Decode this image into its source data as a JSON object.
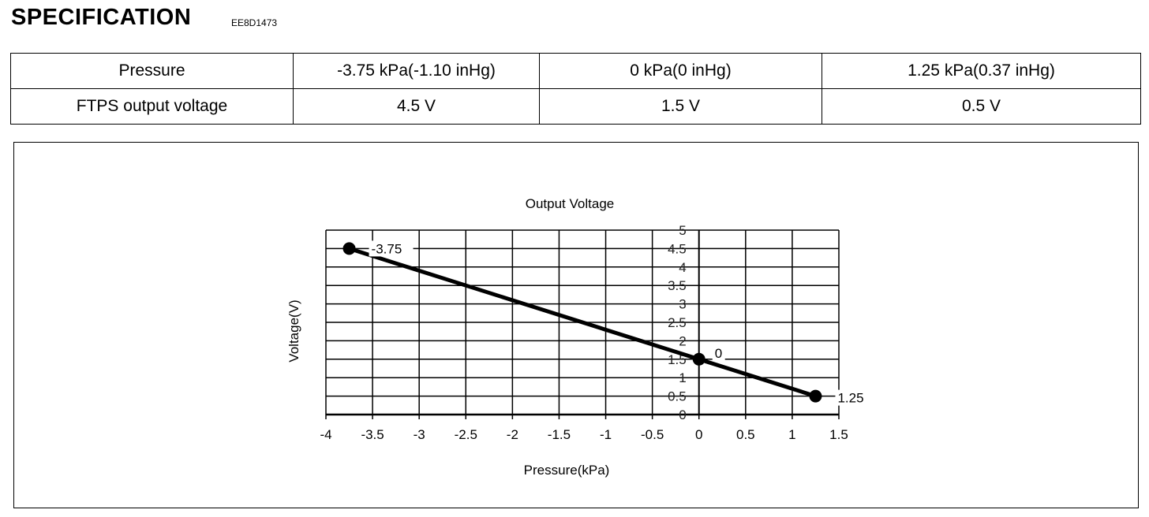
{
  "header": {
    "title": "SPECIFICATION",
    "code": "EE8D1473"
  },
  "spec_table": {
    "rows": [
      [
        "Pressure",
        "-3.75 kPa(-1.10 inHg)",
        "0 kPa(0 inHg)",
        "1.25 kPa(0.37 inHg)"
      ],
      [
        "FTPS output voltage",
        "4.5  V",
        "1.5  V",
        "0.5  V"
      ]
    ]
  },
  "chart_data": {
    "type": "line",
    "title": "Output Voltage",
    "xlabel": "Pressure(kPa)",
    "ylabel": "Voltage(V)",
    "xlim": [
      -4,
      1.5
    ],
    "ylim": [
      0,
      5
    ],
    "grid": true,
    "x_ticks": [
      "-4",
      "-3.5",
      "-3",
      "-2.5",
      "-2",
      "-1.5",
      "-1",
      "-0.5",
      "0",
      "0.5",
      "1",
      "1.5"
    ],
    "y_ticks": [
      "0",
      "0.5",
      "1",
      "1.5",
      "2",
      "2.5",
      "3",
      "3.5",
      "4",
      "4.5",
      "5"
    ],
    "series": [
      {
        "name": "Output Voltage",
        "x": [
          -3.75,
          0,
          1.25
        ],
        "y": [
          4.5,
          1.5,
          0.5
        ]
      }
    ],
    "point_labels": [
      "-3.75",
      "0",
      "1.25"
    ]
  }
}
